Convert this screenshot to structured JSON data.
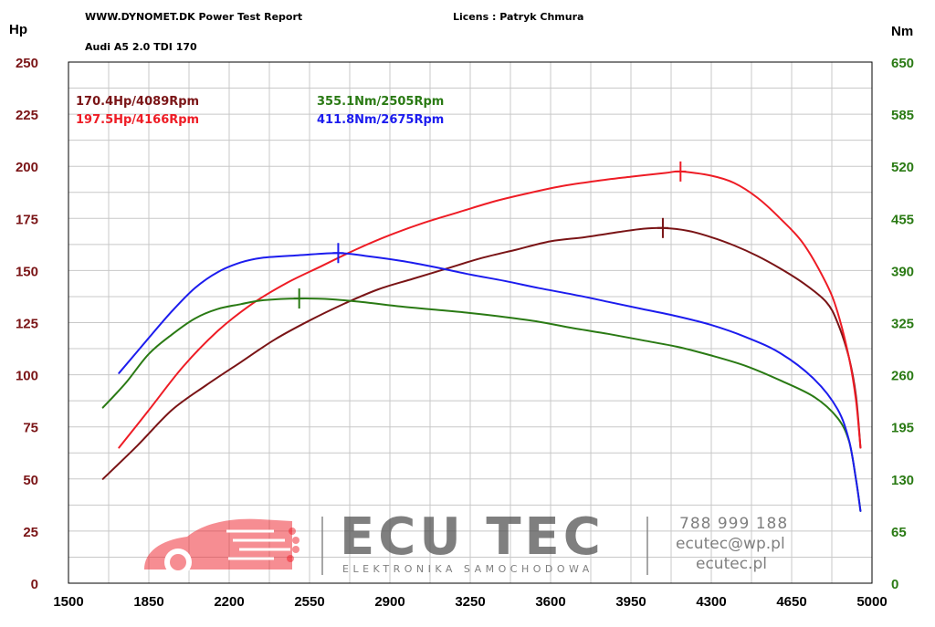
{
  "header": {
    "site": "WWW.DYNOMET.DK  Power Test Report",
    "license": "Licens :  Patryk Chmura",
    "vehicle": "Audi A5 2.0 TDI 170"
  },
  "colors": {
    "hp_stock": "#7a1416",
    "hp_tuned": "#ee1c25",
    "nm_stock": "#2a7a14",
    "nm_tuned": "#1c1cee",
    "left_axis": "#7a1416",
    "right_axis": "#2a7a14",
    "grid": "#c8c8c8",
    "logo_red": "#ee1c25",
    "logo_gray": "#555555"
  },
  "chart_data": {
    "type": "line",
    "xlabel": "",
    "xlim": [
      1500,
      5000
    ],
    "x_ticks": [
      "1500",
      "1850",
      "2200",
      "2550",
      "2900",
      "3250",
      "3600",
      "3950",
      "4300",
      "4650",
      "5000"
    ],
    "y_left": {
      "unit": "Hp",
      "lim": [
        0,
        250
      ],
      "ticks": [
        "0",
        "25",
        "50",
        "75",
        "100",
        "125",
        "150",
        "175",
        "200",
        "225",
        "250"
      ]
    },
    "y_right": {
      "unit": "Nm",
      "lim": [
        0,
        650
      ],
      "ticks": [
        "0",
        "65",
        "130",
        "195",
        "260",
        "325",
        "390",
        "455",
        "520",
        "585",
        "650"
      ]
    },
    "grid": true,
    "peaks": {
      "hp_stock": "170.4Hp/4089Rpm",
      "hp_tuned": "197.5Hp/4166Rpm",
      "nm_stock": "355.1Nm/2505Rpm",
      "nm_tuned": "411.8Nm/2675Rpm"
    },
    "peak_points": {
      "hp_stock": [
        4089,
        170.4
      ],
      "hp_tuned": [
        4166,
        197.5
      ],
      "nm_stock": [
        2505,
        355.1
      ],
      "nm_tuned": [
        2675,
        411.8
      ]
    },
    "series": [
      {
        "key": "hp_stock",
        "axis": "left",
        "points": [
          [
            1650,
            50
          ],
          [
            1800,
            66
          ],
          [
            1950,
            83
          ],
          [
            2100,
            95
          ],
          [
            2250,
            106
          ],
          [
            2400,
            117
          ],
          [
            2550,
            126
          ],
          [
            2700,
            134
          ],
          [
            2850,
            141
          ],
          [
            3000,
            146
          ],
          [
            3150,
            151
          ],
          [
            3300,
            156
          ],
          [
            3450,
            160
          ],
          [
            3600,
            164
          ],
          [
            3750,
            166
          ],
          [
            3900,
            168.5
          ],
          [
            4000,
            170
          ],
          [
            4089,
            170.4
          ],
          [
            4200,
            169
          ],
          [
            4300,
            166
          ],
          [
            4400,
            162
          ],
          [
            4500,
            157
          ],
          [
            4600,
            151
          ],
          [
            4700,
            144
          ],
          [
            4800,
            135
          ],
          [
            4850,
            125
          ],
          [
            4900,
            108
          ],
          [
            4930,
            90
          ],
          [
            4950,
            65
          ]
        ]
      },
      {
        "key": "hp_tuned",
        "axis": "left",
        "points": [
          [
            1720,
            65
          ],
          [
            1850,
            83
          ],
          [
            2000,
            104
          ],
          [
            2150,
            121
          ],
          [
            2300,
            134
          ],
          [
            2450,
            144
          ],
          [
            2600,
            152
          ],
          [
            2750,
            160
          ],
          [
            2900,
            167
          ],
          [
            3050,
            173
          ],
          [
            3200,
            178
          ],
          [
            3350,
            183
          ],
          [
            3500,
            187
          ],
          [
            3650,
            190.5
          ],
          [
            3800,
            193
          ],
          [
            3950,
            195
          ],
          [
            4100,
            196.8
          ],
          [
            4166,
            197.5
          ],
          [
            4300,
            195.5
          ],
          [
            4400,
            192
          ],
          [
            4500,
            185
          ],
          [
            4600,
            175
          ],
          [
            4700,
            163
          ],
          [
            4800,
            144
          ],
          [
            4850,
            130
          ],
          [
            4900,
            108
          ],
          [
            4930,
            88
          ],
          [
            4950,
            65
          ]
        ]
      },
      {
        "key": "nm_stock",
        "axis": "right",
        "points": [
          [
            1650,
            219
          ],
          [
            1750,
            250
          ],
          [
            1850,
            286
          ],
          [
            1950,
            310
          ],
          [
            2050,
            330
          ],
          [
            2150,
            342
          ],
          [
            2250,
            348
          ],
          [
            2350,
            353
          ],
          [
            2505,
            355.1
          ],
          [
            2650,
            354
          ],
          [
            2800,
            350
          ],
          [
            2950,
            345
          ],
          [
            3100,
            341
          ],
          [
            3250,
            337
          ],
          [
            3400,
            332
          ],
          [
            3550,
            326
          ],
          [
            3700,
            318
          ],
          [
            3850,
            311
          ],
          [
            4000,
            303
          ],
          [
            4150,
            295
          ],
          [
            4300,
            284
          ],
          [
            4450,
            271
          ],
          [
            4600,
            253
          ],
          [
            4750,
            232
          ],
          [
            4850,
            206
          ],
          [
            4900,
            177
          ],
          [
            4930,
            130
          ],
          [
            4950,
            90
          ]
        ]
      },
      {
        "key": "nm_tuned",
        "axis": "right",
        "points": [
          [
            1720,
            262
          ],
          [
            1850,
            306
          ],
          [
            1950,
            339
          ],
          [
            2050,
            368
          ],
          [
            2150,
            388
          ],
          [
            2250,
            400
          ],
          [
            2350,
            406
          ],
          [
            2500,
            409
          ],
          [
            2675,
            411.8
          ],
          [
            2800,
            408
          ],
          [
            2950,
            402
          ],
          [
            3100,
            394
          ],
          [
            3250,
            385
          ],
          [
            3400,
            377
          ],
          [
            3550,
            368
          ],
          [
            3700,
            360
          ],
          [
            3850,
            351
          ],
          [
            4000,
            342
          ],
          [
            4150,
            333
          ],
          [
            4300,
            322
          ],
          [
            4450,
            307
          ],
          [
            4600,
            287
          ],
          [
            4750,
            254
          ],
          [
            4850,
            217
          ],
          [
            4900,
            178
          ],
          [
            4930,
            130
          ],
          [
            4950,
            90
          ]
        ]
      }
    ]
  },
  "logo": {
    "brand": "ECU TEC",
    "tagline": "ELEKTRONIKA SAMOCHODOWA",
    "phone": "788 999 188",
    "email": "ecutec@wp.pl",
    "web": "ecutec.pl"
  }
}
